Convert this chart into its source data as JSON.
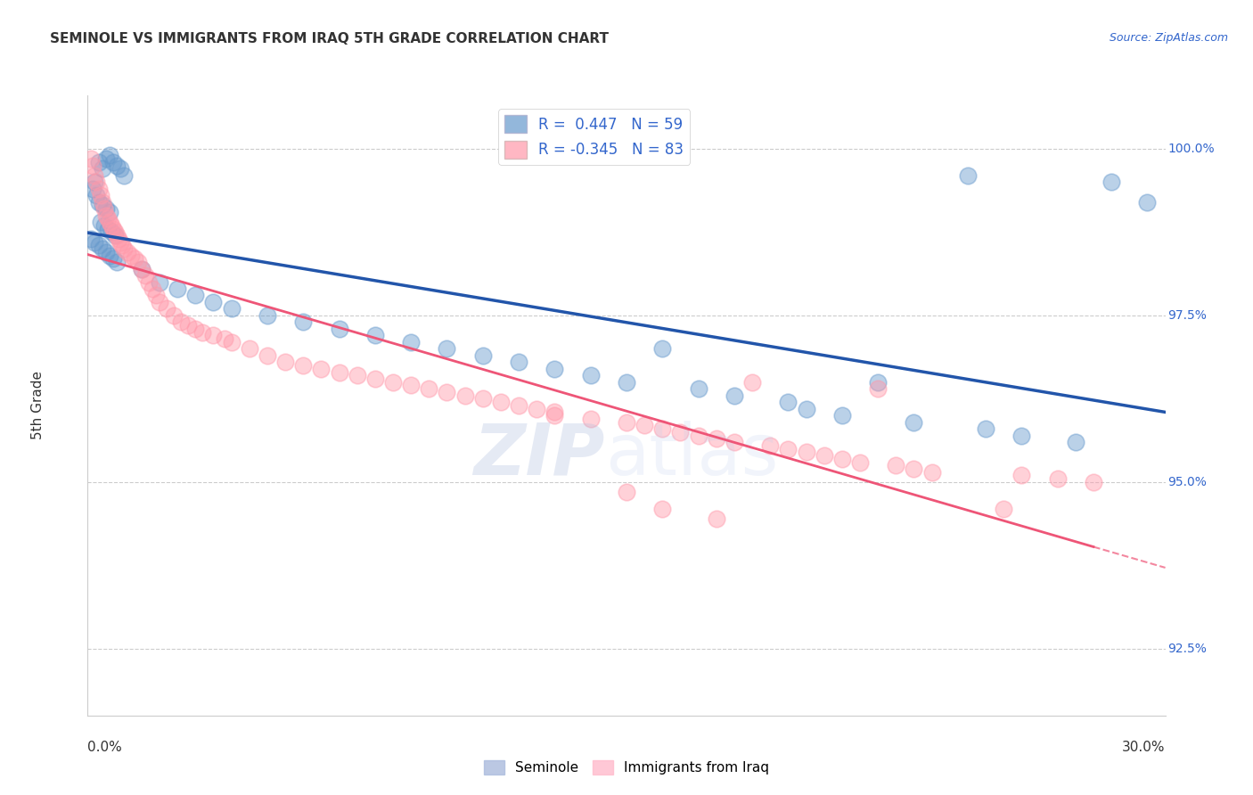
{
  "title": "SEMINOLE VS IMMIGRANTS FROM IRAQ 5TH GRADE CORRELATION CHART",
  "source": "Source: ZipAtlas.com",
  "ylabel": "5th Grade",
  "yticks": [
    92.5,
    95.0,
    97.5,
    100.0
  ],
  "ytick_labels": [
    "92.5%",
    "95.0%",
    "97.5%",
    "100.0%"
  ],
  "xmin": 0.0,
  "xmax": 30.0,
  "ymin": 91.5,
  "ymax": 100.8,
  "blue_R": 0.447,
  "blue_N": 59,
  "pink_R": -0.345,
  "pink_N": 83,
  "blue_color": "#6699CC",
  "pink_color": "#FF99AA",
  "blue_line_color": "#2255AA",
  "pink_line_color": "#EE5577",
  "legend_label_blue": "Seminole",
  "legend_label_pink": "Immigrants from Iraq",
  "blue_scatter": [
    [
      0.3,
      99.8
    ],
    [
      0.4,
      99.7
    ],
    [
      0.5,
      99.85
    ],
    [
      0.6,
      99.9
    ],
    [
      0.7,
      99.8
    ],
    [
      0.8,
      99.75
    ],
    [
      0.9,
      99.7
    ],
    [
      1.0,
      99.6
    ],
    [
      0.2,
      99.5
    ],
    [
      0.15,
      99.4
    ],
    [
      0.25,
      99.3
    ],
    [
      0.3,
      99.2
    ],
    [
      0.4,
      99.15
    ],
    [
      0.5,
      99.1
    ],
    [
      0.6,
      99.05
    ],
    [
      0.35,
      98.9
    ],
    [
      0.45,
      98.85
    ],
    [
      0.55,
      98.8
    ],
    [
      0.65,
      98.75
    ],
    [
      0.75,
      98.7
    ],
    [
      0.1,
      98.65
    ],
    [
      0.2,
      98.6
    ],
    [
      0.3,
      98.55
    ],
    [
      0.4,
      98.5
    ],
    [
      0.5,
      98.45
    ],
    [
      0.6,
      98.4
    ],
    [
      0.7,
      98.35
    ],
    [
      0.8,
      98.3
    ],
    [
      1.5,
      98.2
    ],
    [
      2.0,
      98.0
    ],
    [
      2.5,
      97.9
    ],
    [
      3.0,
      97.8
    ],
    [
      3.5,
      97.7
    ],
    [
      4.0,
      97.6
    ],
    [
      5.0,
      97.5
    ],
    [
      6.0,
      97.4
    ],
    [
      7.0,
      97.3
    ],
    [
      8.0,
      97.2
    ],
    [
      9.0,
      97.1
    ],
    [
      10.0,
      97.0
    ],
    [
      11.0,
      96.9
    ],
    [
      12.0,
      96.8
    ],
    [
      13.0,
      96.7
    ],
    [
      14.0,
      96.6
    ],
    [
      15.0,
      96.5
    ],
    [
      16.0,
      97.0
    ],
    [
      17.0,
      96.4
    ],
    [
      18.0,
      96.3
    ],
    [
      19.5,
      96.2
    ],
    [
      20.0,
      96.1
    ],
    [
      21.0,
      96.0
    ],
    [
      22.0,
      96.5
    ],
    [
      23.0,
      95.9
    ],
    [
      24.5,
      99.6
    ],
    [
      25.0,
      95.8
    ],
    [
      26.0,
      95.7
    ],
    [
      27.5,
      95.6
    ],
    [
      28.5,
      99.5
    ],
    [
      29.5,
      99.2
    ]
  ],
  "pink_scatter": [
    [
      0.1,
      99.85
    ],
    [
      0.15,
      99.75
    ],
    [
      0.2,
      99.6
    ],
    [
      0.25,
      99.5
    ],
    [
      0.3,
      99.4
    ],
    [
      0.35,
      99.3
    ],
    [
      0.4,
      99.2
    ],
    [
      0.45,
      99.1
    ],
    [
      0.5,
      99.0
    ],
    [
      0.55,
      98.95
    ],
    [
      0.6,
      98.9
    ],
    [
      0.65,
      98.85
    ],
    [
      0.7,
      98.8
    ],
    [
      0.75,
      98.75
    ],
    [
      0.8,
      98.7
    ],
    [
      0.85,
      98.65
    ],
    [
      0.9,
      98.6
    ],
    [
      0.95,
      98.55
    ],
    [
      1.0,
      98.5
    ],
    [
      1.1,
      98.45
    ],
    [
      1.2,
      98.4
    ],
    [
      1.3,
      98.35
    ],
    [
      1.4,
      98.3
    ],
    [
      1.5,
      98.2
    ],
    [
      1.6,
      98.1
    ],
    [
      1.7,
      98.0
    ],
    [
      1.8,
      97.9
    ],
    [
      1.9,
      97.8
    ],
    [
      2.0,
      97.7
    ],
    [
      2.2,
      97.6
    ],
    [
      2.4,
      97.5
    ],
    [
      2.6,
      97.4
    ],
    [
      2.8,
      97.35
    ],
    [
      3.0,
      97.3
    ],
    [
      3.2,
      97.25
    ],
    [
      3.5,
      97.2
    ],
    [
      3.8,
      97.15
    ],
    [
      4.0,
      97.1
    ],
    [
      4.5,
      97.0
    ],
    [
      5.0,
      96.9
    ],
    [
      5.5,
      96.8
    ],
    [
      6.0,
      96.75
    ],
    [
      6.5,
      96.7
    ],
    [
      7.0,
      96.65
    ],
    [
      7.5,
      96.6
    ],
    [
      8.0,
      96.55
    ],
    [
      8.5,
      96.5
    ],
    [
      9.0,
      96.45
    ],
    [
      9.5,
      96.4
    ],
    [
      10.0,
      96.35
    ],
    [
      10.5,
      96.3
    ],
    [
      11.0,
      96.25
    ],
    [
      11.5,
      96.2
    ],
    [
      12.0,
      96.15
    ],
    [
      12.5,
      96.1
    ],
    [
      13.0,
      96.05
    ],
    [
      13.0,
      96.0
    ],
    [
      14.0,
      95.95
    ],
    [
      15.0,
      95.9
    ],
    [
      15.5,
      95.85
    ],
    [
      16.0,
      95.8
    ],
    [
      16.5,
      95.75
    ],
    [
      17.0,
      95.7
    ],
    [
      17.5,
      95.65
    ],
    [
      18.0,
      95.6
    ],
    [
      18.5,
      96.5
    ],
    [
      19.0,
      95.55
    ],
    [
      19.5,
      95.5
    ],
    [
      20.0,
      95.45
    ],
    [
      20.5,
      95.4
    ],
    [
      21.0,
      95.35
    ],
    [
      21.5,
      95.3
    ],
    [
      22.0,
      96.4
    ],
    [
      22.5,
      95.25
    ],
    [
      23.0,
      95.2
    ],
    [
      15.0,
      94.85
    ],
    [
      16.0,
      94.6
    ],
    [
      17.5,
      94.45
    ],
    [
      23.5,
      95.15
    ],
    [
      25.5,
      94.6
    ],
    [
      26.0,
      95.1
    ],
    [
      27.0,
      95.05
    ],
    [
      28.0,
      95.0
    ]
  ]
}
